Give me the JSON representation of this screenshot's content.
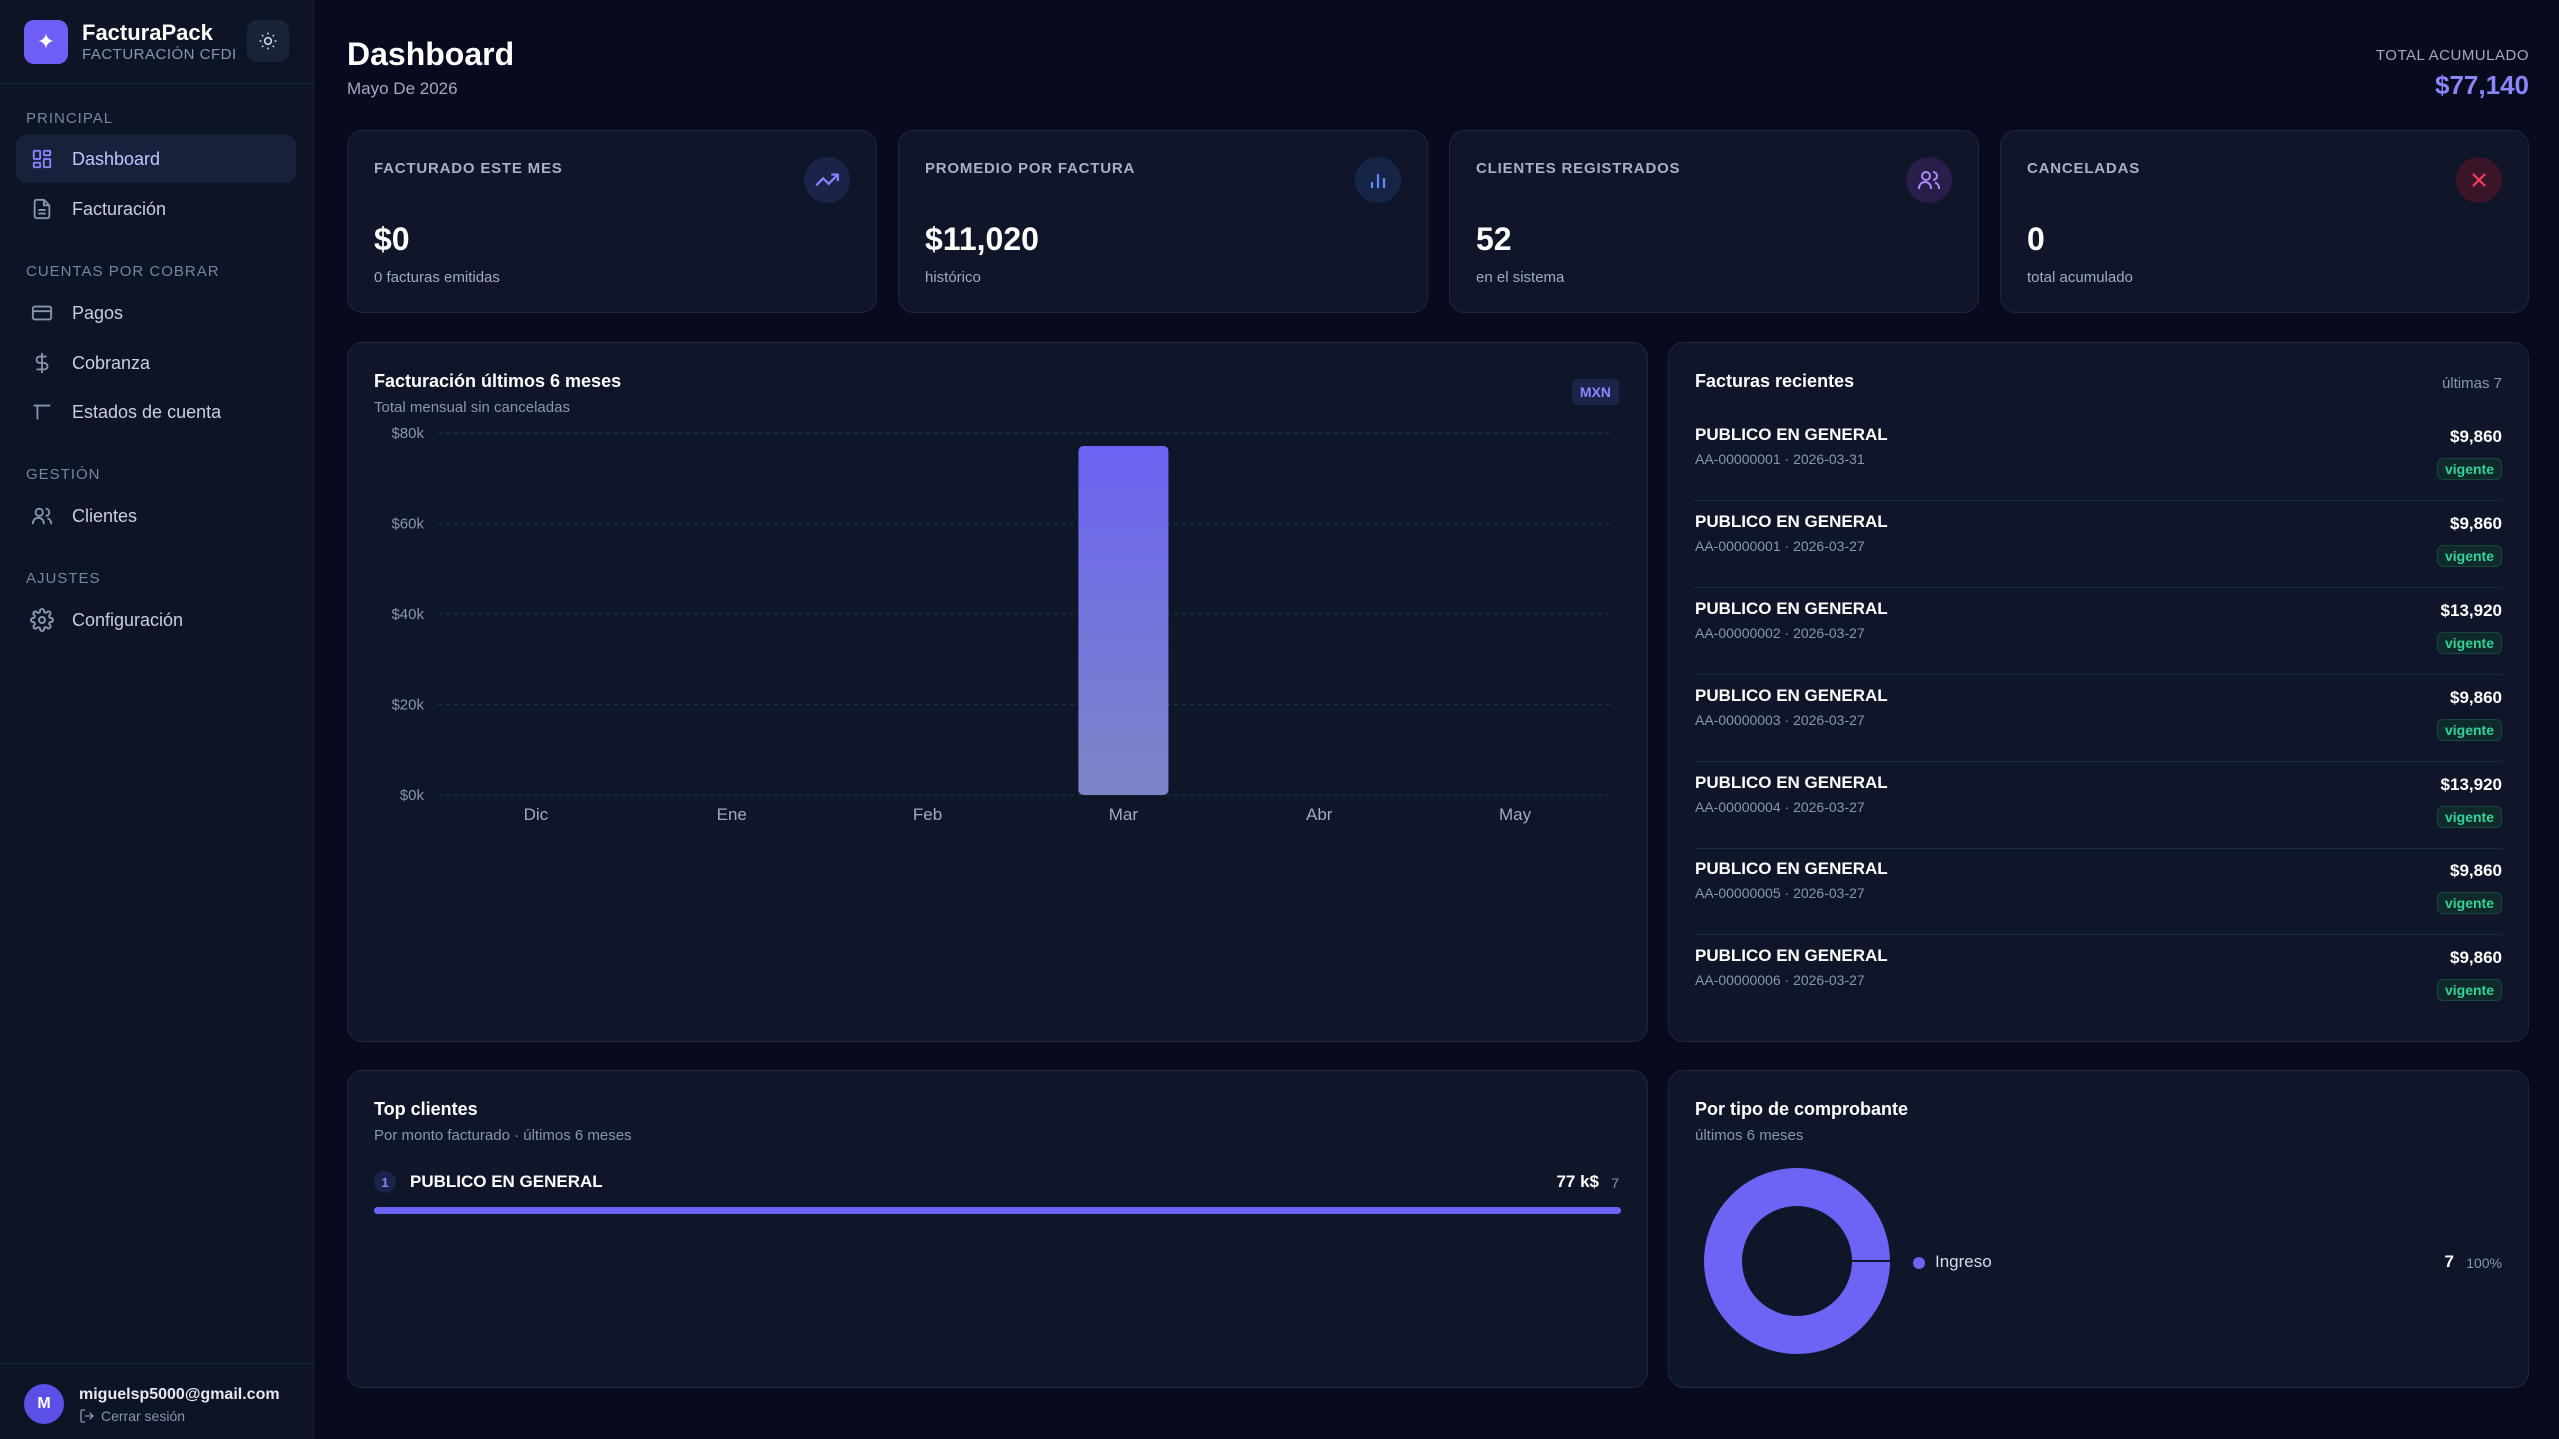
{
  "brand": {
    "name": "FacturaPack",
    "subtitle": "FACTURACIÓN CFDI"
  },
  "sidebar": {
    "sections": [
      {
        "label": "PRINCIPAL"
      },
      {
        "label": "CUENTAS POR COBRAR"
      },
      {
        "label": "GESTIÓN"
      },
      {
        "label": "AJUSTES"
      }
    ],
    "items": [
      {
        "label": "Dashboard",
        "icon": "dashboard-icon",
        "active": true
      },
      {
        "label": "Facturación",
        "icon": "document-icon"
      },
      {
        "label": "Pagos",
        "icon": "credit-card-icon"
      },
      {
        "label": "Cobranza",
        "icon": "dollar-icon"
      },
      {
        "label": "Estados de cuenta",
        "icon": "statement-icon"
      },
      {
        "label": "Clientes",
        "icon": "users-icon"
      },
      {
        "label": "Configuración",
        "icon": "gear-icon"
      }
    ]
  },
  "user": {
    "initial": "M",
    "email": "miguelsp5000@gmail.com",
    "logout_label": "Cerrar sesión"
  },
  "header": {
    "title": "Dashboard",
    "subtitle": "Mayo De 2026",
    "total_label": "TOTAL ACUMULADO",
    "total_value": "$77,140"
  },
  "stats": [
    {
      "label": "FACTURADO ESTE MES",
      "value": "$0",
      "note": "0 facturas emitidas",
      "icon": "trend-up-icon"
    },
    {
      "label": "PROMEDIO POR FACTURA",
      "value": "$11,020",
      "note": "histórico",
      "icon": "bar-chart-icon"
    },
    {
      "label": "CLIENTES REGISTRADOS",
      "value": "52",
      "note": "en el sistema",
      "icon": "users-icon"
    },
    {
      "label": "CANCELADAS",
      "value": "0",
      "note": "total acumulado",
      "icon": "close-icon"
    }
  ],
  "revenue_card": {
    "title": "Facturación últimos 6 meses",
    "subtitle": "Total mensual sin canceladas",
    "currency": "MXN"
  },
  "chart_data": {
    "type": "bar",
    "title": "Facturación últimos 6 meses",
    "subtitle": "Total mensual sin canceladas",
    "categories": [
      "Dic",
      "Ene",
      "Feb",
      "Mar",
      "Abr",
      "May"
    ],
    "values": [
      0,
      0,
      0,
      77140,
      0,
      0
    ],
    "yticks": [
      "$0k",
      "$20k",
      "$40k",
      "$60k",
      "$80k"
    ],
    "ylim": [
      0,
      80000
    ],
    "grid": true,
    "bar_color": "#6d63f5"
  },
  "recent": {
    "title": "Facturas recientes",
    "count_label": "últimas 7",
    "rows": [
      {
        "name": "PUBLICO EN GENERAL",
        "meta": "AA-00000001 · 2026-03-31",
        "amount": "$9,860",
        "status": "vigente"
      },
      {
        "name": "PUBLICO EN GENERAL",
        "meta": "AA-00000001 · 2026-03-27",
        "amount": "$9,860",
        "status": "vigente"
      },
      {
        "name": "PUBLICO EN GENERAL",
        "meta": "AA-00000002 · 2026-03-27",
        "amount": "$13,920",
        "status": "vigente"
      },
      {
        "name": "PUBLICO EN GENERAL",
        "meta": "AA-00000003 · 2026-03-27",
        "amount": "$9,860",
        "status": "vigente"
      },
      {
        "name": "PUBLICO EN GENERAL",
        "meta": "AA-00000004 · 2026-03-27",
        "amount": "$13,920",
        "status": "vigente"
      },
      {
        "name": "PUBLICO EN GENERAL",
        "meta": "AA-00000005 · 2026-03-27",
        "amount": "$9,860",
        "status": "vigente"
      },
      {
        "name": "PUBLICO EN GENERAL",
        "meta": "AA-00000006 · 2026-03-27",
        "amount": "$9,860",
        "status": "vigente"
      }
    ]
  },
  "top_clients": {
    "title": "Top clientes",
    "subtitle": "Por monto facturado · últimos 6 meses",
    "rows": [
      {
        "rank": "1",
        "name": "PUBLICO EN GENERAL",
        "amount": "77 k$",
        "count": "7",
        "share": 1.0
      }
    ]
  },
  "by_type": {
    "title": "Por tipo de comprobante",
    "subtitle": "últimos 6 meses",
    "items": [
      {
        "label": "Ingreso",
        "count": "7",
        "pct": "100%",
        "fraction": 1.0,
        "color": "#6d63f5"
      }
    ]
  },
  "colors": {
    "accent": "#6d63f5",
    "success": "#34d399",
    "danger": "#f43f5e",
    "background": "#070b1d"
  }
}
